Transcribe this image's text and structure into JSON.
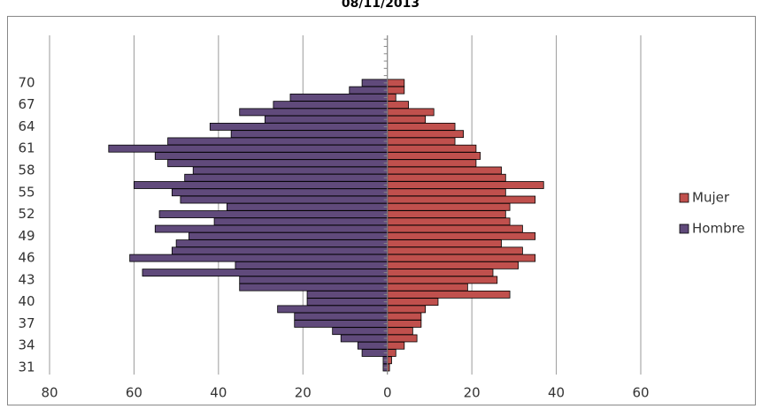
{
  "chart_data": {
    "type": "bar",
    "title": "08/11/2013",
    "categories": [
      "31",
      null,
      null,
      "34",
      null,
      null,
      "37",
      null,
      null,
      "40",
      null,
      null,
      "43",
      null,
      null,
      "46",
      null,
      null,
      "49",
      null,
      null,
      "52",
      null,
      null,
      "55",
      null,
      null,
      "58",
      null,
      null,
      "61",
      null,
      null,
      "64",
      null,
      null,
      "67",
      null,
      null,
      "70"
    ],
    "series": [
      {
        "name": "Mujer",
        "color": "#c0504d",
        "values": [
          0.5,
          1,
          2,
          4,
          7,
          6,
          8,
          8,
          9,
          12,
          29,
          19,
          26,
          25,
          31,
          35,
          32,
          27,
          35,
          32,
          29,
          28,
          29,
          35,
          28,
          37,
          28,
          27,
          21,
          22,
          21,
          16,
          18,
          16,
          9,
          11,
          5,
          2,
          4,
          4
        ]
      },
      {
        "name": "Hombre",
        "color": "#604a7b",
        "values": [
          -1,
          -1,
          -6,
          -7,
          -11,
          -13,
          -22,
          -22,
          -26,
          -19,
          -19,
          -35,
          -35,
          -58,
          -36,
          -61,
          -51,
          -50,
          -47,
          -55,
          -41,
          -54,
          -38,
          -49,
          -51,
          -60,
          -48,
          -46,
          -52,
          -55,
          -66,
          -52,
          -37,
          -42,
          -29,
          -35,
          -27,
          -23,
          -9,
          -6
        ]
      }
    ],
    "xlim": [
      -80,
      60
    ],
    "xticks": [
      {
        "value": -80,
        "label": "80"
      },
      {
        "value": -60,
        "label": "60"
      },
      {
        "value": -40,
        "label": "40"
      },
      {
        "value": -20,
        "label": "20"
      },
      0,
      20,
      40,
      60
    ],
    "grid": true,
    "legend": "right"
  }
}
